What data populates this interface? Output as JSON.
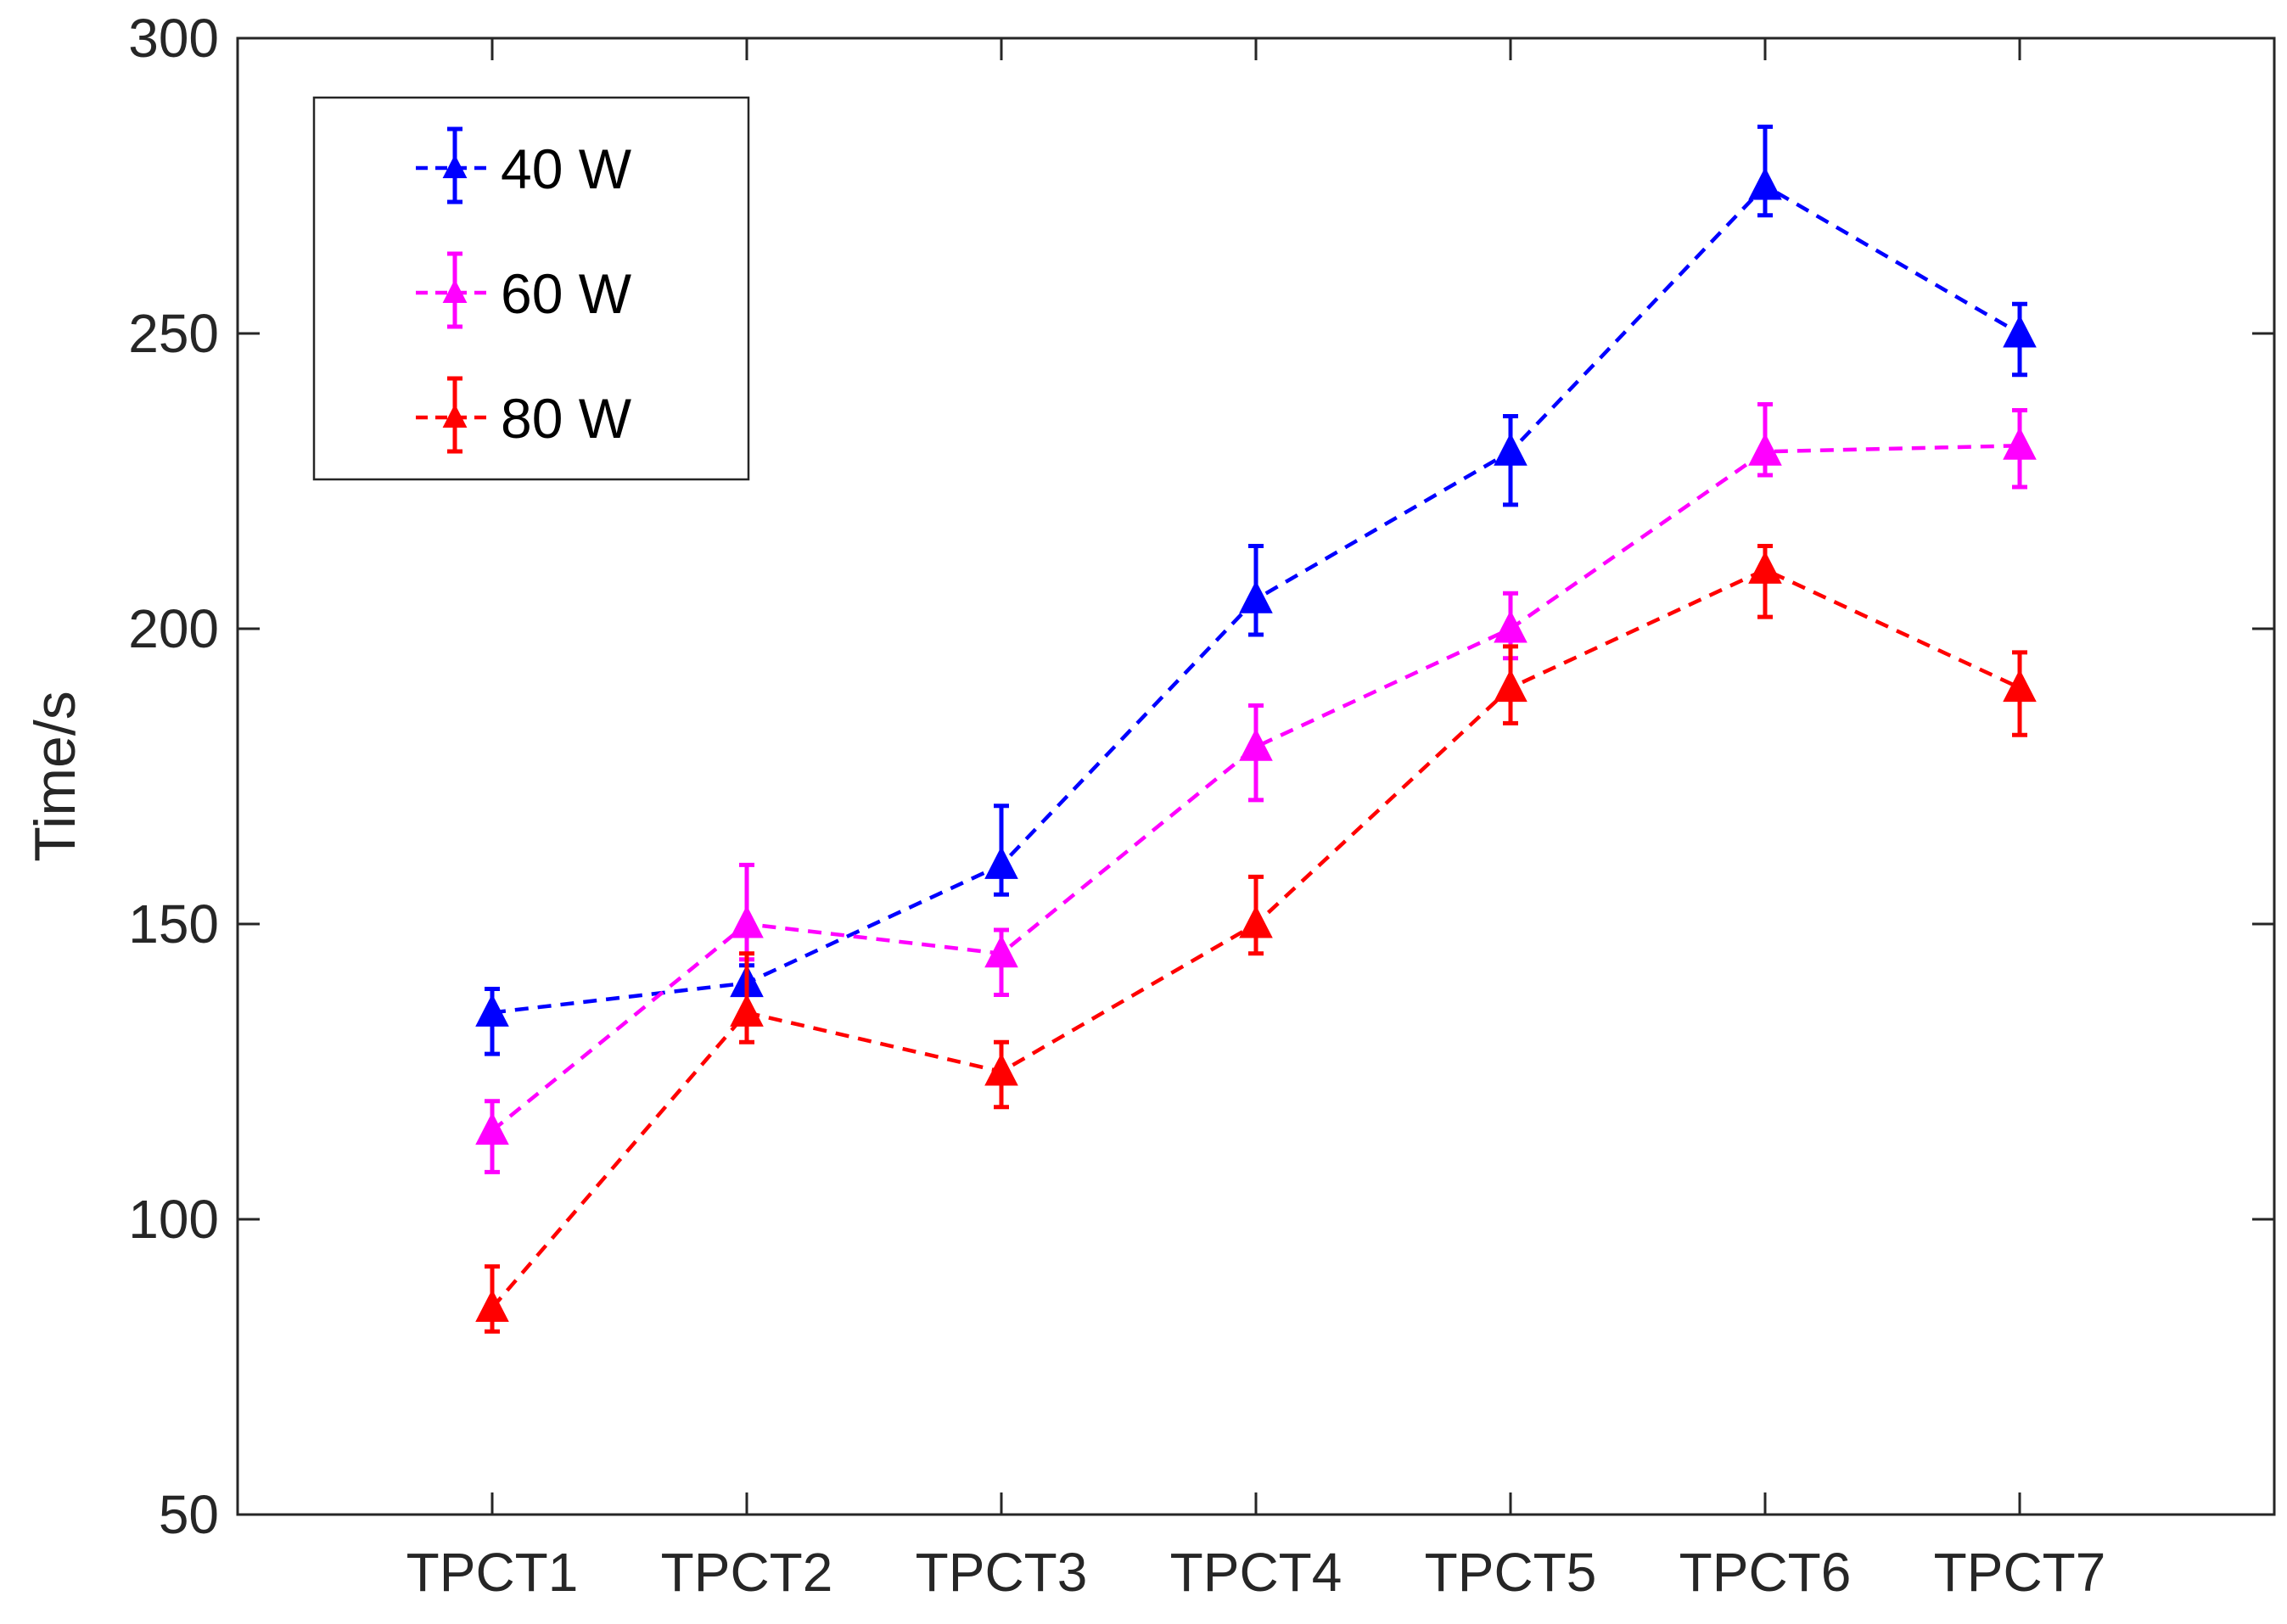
{
  "chart_data": {
    "type": "line",
    "title": "",
    "xlabel": "",
    "ylabel": "Time/s",
    "categories": [
      "TPCT1",
      "TPCT2",
      "TPCT3",
      "TPCT4",
      "TPCT5",
      "TPCT6",
      "TPCT7"
    ],
    "ylim": [
      50,
      300
    ],
    "yticks": [
      50,
      100,
      150,
      200,
      250,
      300
    ],
    "grid": false,
    "legend_position": "top-left",
    "line_style": "dashed",
    "marker": "triangle",
    "error_bars": true,
    "series": [
      {
        "name": "40 W",
        "color": "#0000ff",
        "values": [
          135,
          140,
          160,
          205,
          230,
          275,
          250
        ],
        "err_low": [
          128,
          135,
          155,
          199,
          221,
          270,
          243
        ],
        "err_high": [
          139,
          143,
          170,
          214,
          236,
          285,
          255
        ]
      },
      {
        "name": "60 W",
        "color": "#ff00ff",
        "values": [
          115,
          150,
          145,
          180,
          200,
          230,
          231
        ],
        "err_low": [
          108,
          144,
          138,
          171,
          195,
          226,
          224
        ],
        "err_high": [
          120,
          160,
          149,
          187,
          206,
          238,
          237
        ]
      },
      {
        "name": "80 W",
        "color": "#ff0000",
        "values": [
          85,
          135,
          125,
          150,
          190,
          210,
          190
        ],
        "err_low": [
          81,
          130,
          119,
          145,
          184,
          202,
          182
        ],
        "err_high": [
          92,
          145,
          130,
          158,
          197,
          214,
          196
        ]
      }
    ]
  }
}
